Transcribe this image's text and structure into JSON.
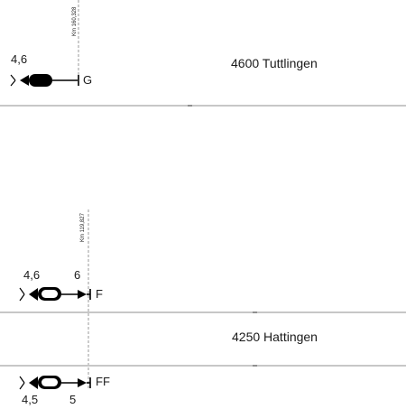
{
  "stations": [
    {
      "name": "4600 Tuttlingen",
      "km": "Km 160,328",
      "signals": [
        {
          "speed": "4,6",
          "letter": "G"
        }
      ]
    },
    {
      "name": "4250 Hattingen",
      "km": "Km 119,827",
      "signals": [
        {
          "speed": "4,6",
          "speed2": "6",
          "letter": "F"
        },
        {
          "speed": "4,5",
          "speed2": "5",
          "letter": "FF"
        }
      ]
    }
  ]
}
